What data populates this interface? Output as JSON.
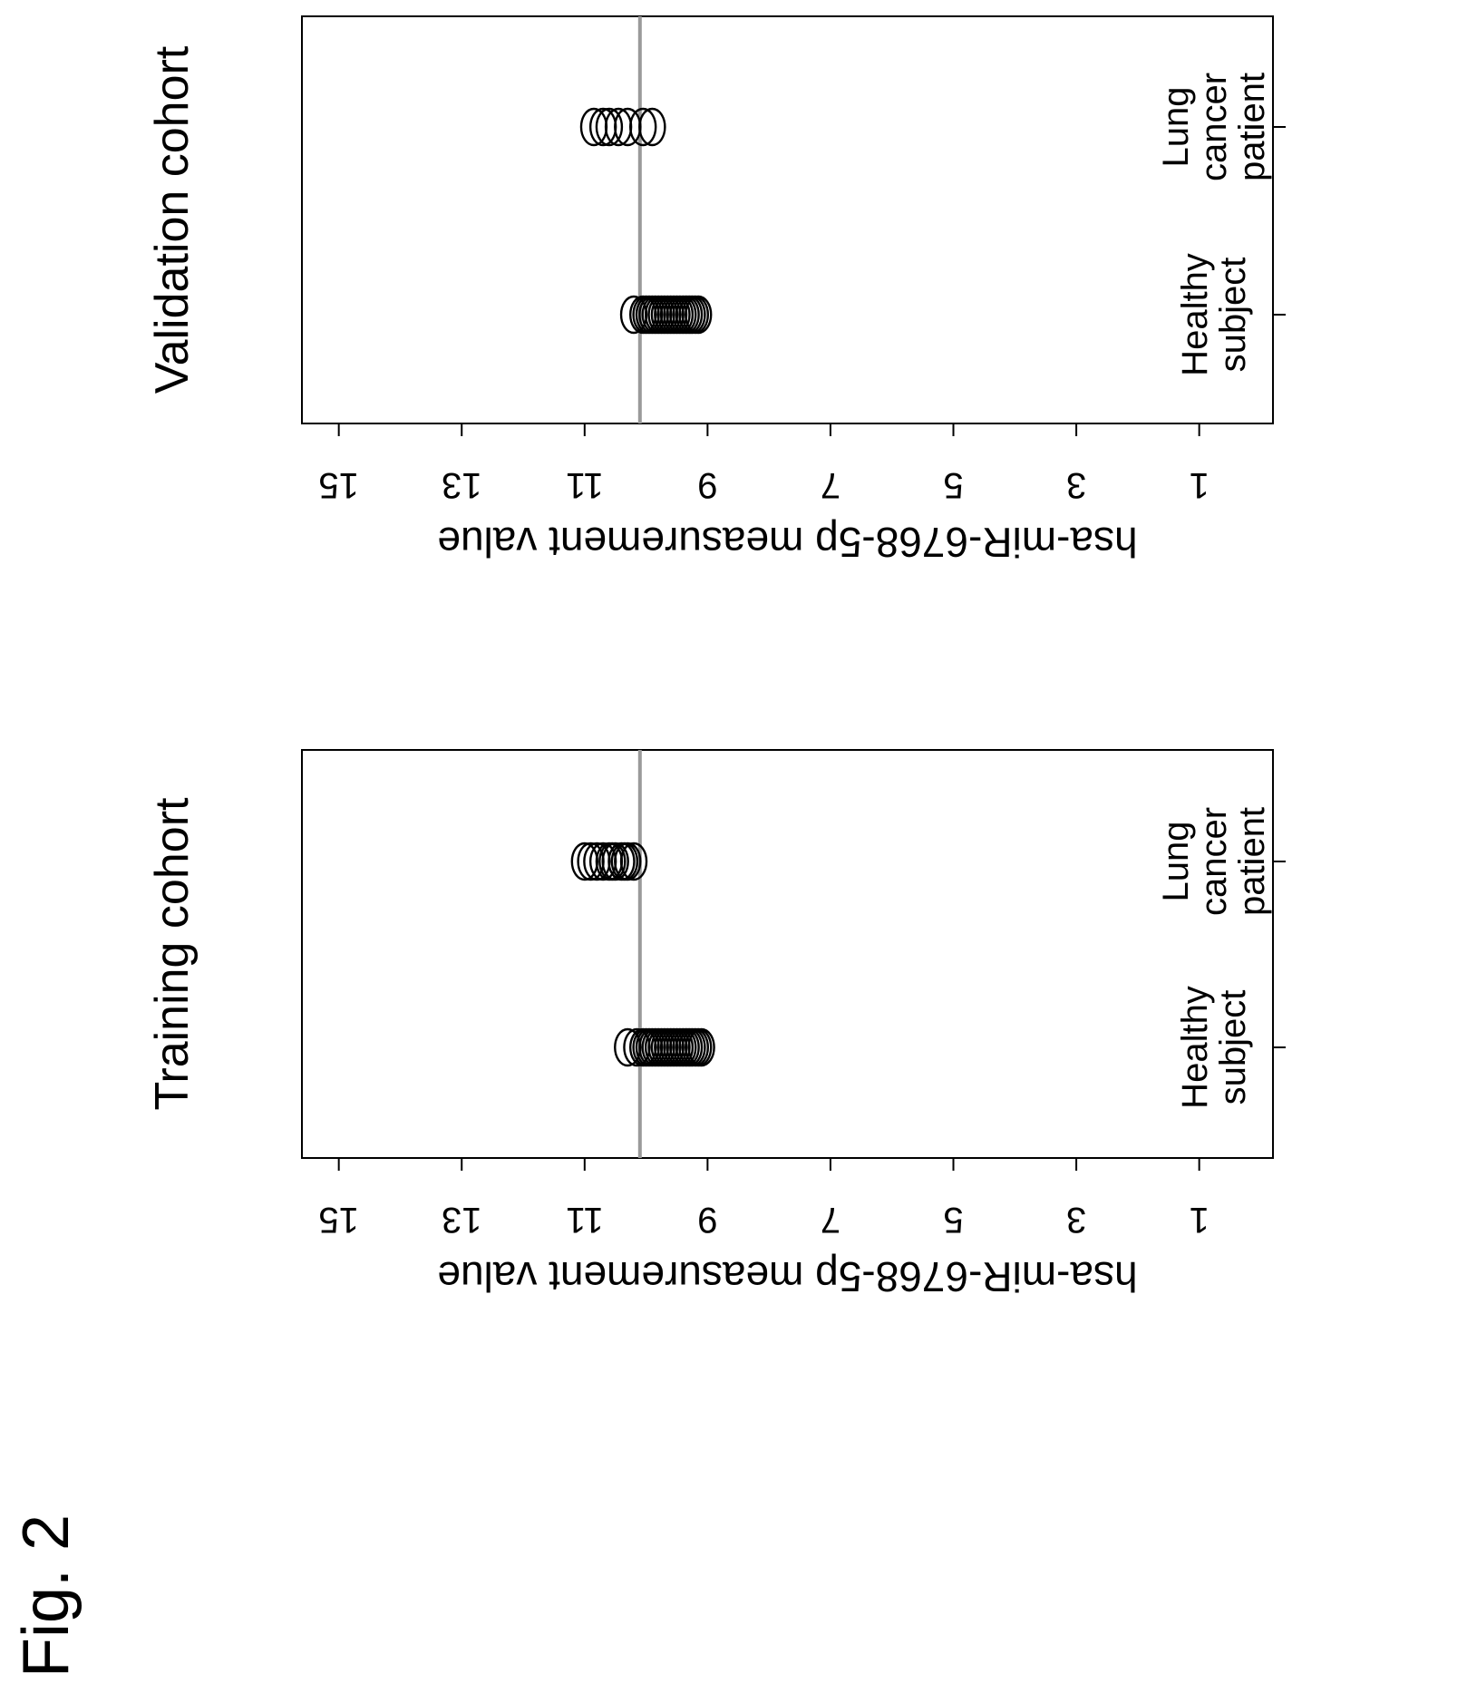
{
  "figure_label": "Fig. 2",
  "chart_data": [
    {
      "type": "scatter",
      "title": "Training cohort",
      "ylabel": "hsa-miR-6768-5p measurement value",
      "ylim": [
        -0.2,
        15.6
      ],
      "yticks": [
        1,
        3,
        5,
        7,
        9,
        11,
        13,
        15
      ],
      "categories": [
        "Healthy subject",
        "Lung cancer patient"
      ],
      "threshold": 10.1,
      "series": [
        {
          "values": [
            9.1,
            9.15,
            9.2,
            9.25,
            9.3,
            9.35,
            9.4,
            9.45,
            9.5,
            9.55,
            9.6,
            9.65,
            9.7,
            9.75,
            9.8,
            9.85,
            9.9,
            9.95,
            10.0,
            10.05,
            10.15,
            10.3
          ]
        },
        {
          "values": [
            10.2,
            10.3,
            10.35,
            10.4,
            10.5,
            10.55,
            10.6,
            10.7,
            10.8,
            10.9,
            11.0
          ]
        }
      ]
    },
    {
      "type": "scatter",
      "title": "Validation cohort",
      "ylabel": "hsa-miR-6768-5p measurement value",
      "ylim": [
        -0.2,
        15.6
      ],
      "yticks": [
        1,
        3,
        5,
        7,
        9,
        11,
        13,
        15
      ],
      "categories": [
        "Healthy subject",
        "Lung cancer patient"
      ],
      "threshold": 10.1,
      "series": [
        {
          "values": [
            9.15,
            9.2,
            9.25,
            9.3,
            9.35,
            9.4,
            9.45,
            9.5,
            9.55,
            9.6,
            9.65,
            9.7,
            9.75,
            9.8,
            9.85,
            9.9,
            9.95,
            10.0,
            10.05,
            10.2
          ]
        },
        {
          "values": [
            9.9,
            10.05,
            10.3,
            10.45,
            10.6,
            10.7,
            10.85
          ]
        }
      ]
    }
  ]
}
